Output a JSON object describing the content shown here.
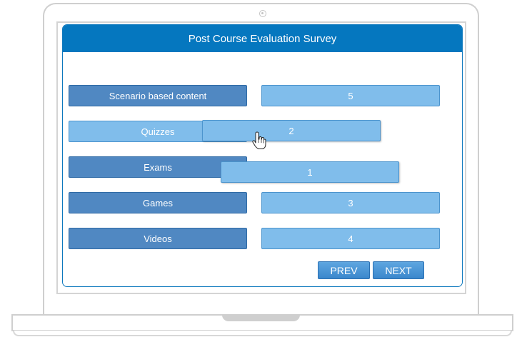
{
  "survey": {
    "title": "Post Course Evaluation Survey",
    "labels": [
      "Scenario based content",
      "Quizzes",
      "Exams",
      "Games",
      "Videos"
    ],
    "values": [
      "5",
      "2",
      "1",
      "3",
      "4"
    ]
  },
  "nav": {
    "prev_label": "PREV",
    "next_label": "NEXT"
  },
  "colors": {
    "header": "#0577bf",
    "label_dark": "#5088c2",
    "label_light": "#80bdeb",
    "value": "#80bdeb",
    "frame": "#cfcfcf"
  },
  "icons": {
    "cursor": "hand-pointer-icon",
    "camera": "camera-icon"
  }
}
